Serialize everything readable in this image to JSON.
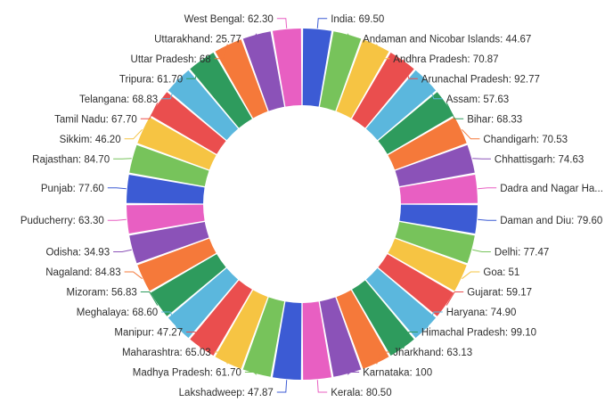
{
  "chart_data": {
    "type": "pie",
    "style": "donut",
    "title": "",
    "legend": "none",
    "label_format": "{category}: {value}",
    "categories": [
      "India",
      "Andaman and Nicobar Islands",
      "Andhra Pradesh",
      "Arunachal Pradesh",
      "Assam",
      "Bihar",
      "Chandigarh",
      "Chhattisgarh",
      "Dadra and Nagar Ha...",
      "Daman and Diu",
      "Delhi",
      "Goa",
      "Gujarat",
      "Haryana",
      "Himachal Pradesh",
      "Jharkhand",
      "Karnataka",
      "Kerala",
      "Lakshadweep",
      "Madhya Pradesh",
      "Maharashtra",
      "Manipur",
      "Meghalaya",
      "Mizoram",
      "Nagaland",
      "Odisha",
      "Puducherry",
      "Punjab",
      "Rajasthan",
      "Sikkim",
      "Tamil Nadu",
      "Telangana",
      "Tripura",
      "Uttar Pradesh",
      "Uttarakhand",
      "West Bengal"
    ],
    "values": [
      69.5,
      44.67,
      70.87,
      92.77,
      57.63,
      68.33,
      70.53,
      74.63,
      null,
      79.6,
      77.47,
      51,
      59.17,
      74.9,
      99.1,
      63.13,
      100,
      80.5,
      47.87,
      61.7,
      65.03,
      47.27,
      68.6,
      56.83,
      84.83,
      34.93,
      63.3,
      77.6,
      84.7,
      46.2,
      67.7,
      68.83,
      61.7,
      68,
      25.77,
      62.3
    ],
    "value_labels": [
      "69.50",
      "44.67",
      "70.87",
      "92.77",
      "57.63",
      "68.33",
      "70.53",
      "74.63",
      "",
      "79.60",
      "77.47",
      "51",
      "59.17",
      "74.90",
      "99.10",
      "63.13",
      "100",
      "80.50",
      "47.87",
      "61.70",
      "65.03",
      "47.27",
      "68.60",
      "56.83",
      "84.83",
      "34.93",
      "63.30",
      "77.60",
      "84.70",
      "46.20",
      "67.70",
      "68.83",
      "61.70",
      "68",
      "25.77",
      "62.30"
    ],
    "colors": [
      "#3c5bd4",
      "#77c35b",
      "#f6c443",
      "#ea4e4e",
      "#5bb7dd",
      "#2e9b5d",
      "#f5793a",
      "#8b52b8",
      "#e85fc2",
      "#3c5bd4",
      "#77c35b",
      "#f6c443",
      "#ea4e4e",
      "#5bb7dd",
      "#2e9b5d",
      "#f5793a",
      "#8b52b8",
      "#e85fc2",
      "#3c5bd4",
      "#77c35b",
      "#f6c443",
      "#ea4e4e",
      "#5bb7dd",
      "#2e9b5d",
      "#f5793a",
      "#8b52b8",
      "#e85fc2",
      "#3c5bd4",
      "#77c35b",
      "#f6c443",
      "#ea4e4e",
      "#5bb7dd",
      "#2e9b5d",
      "#f5793a",
      "#8b52b8",
      "#e85fc2"
    ]
  }
}
